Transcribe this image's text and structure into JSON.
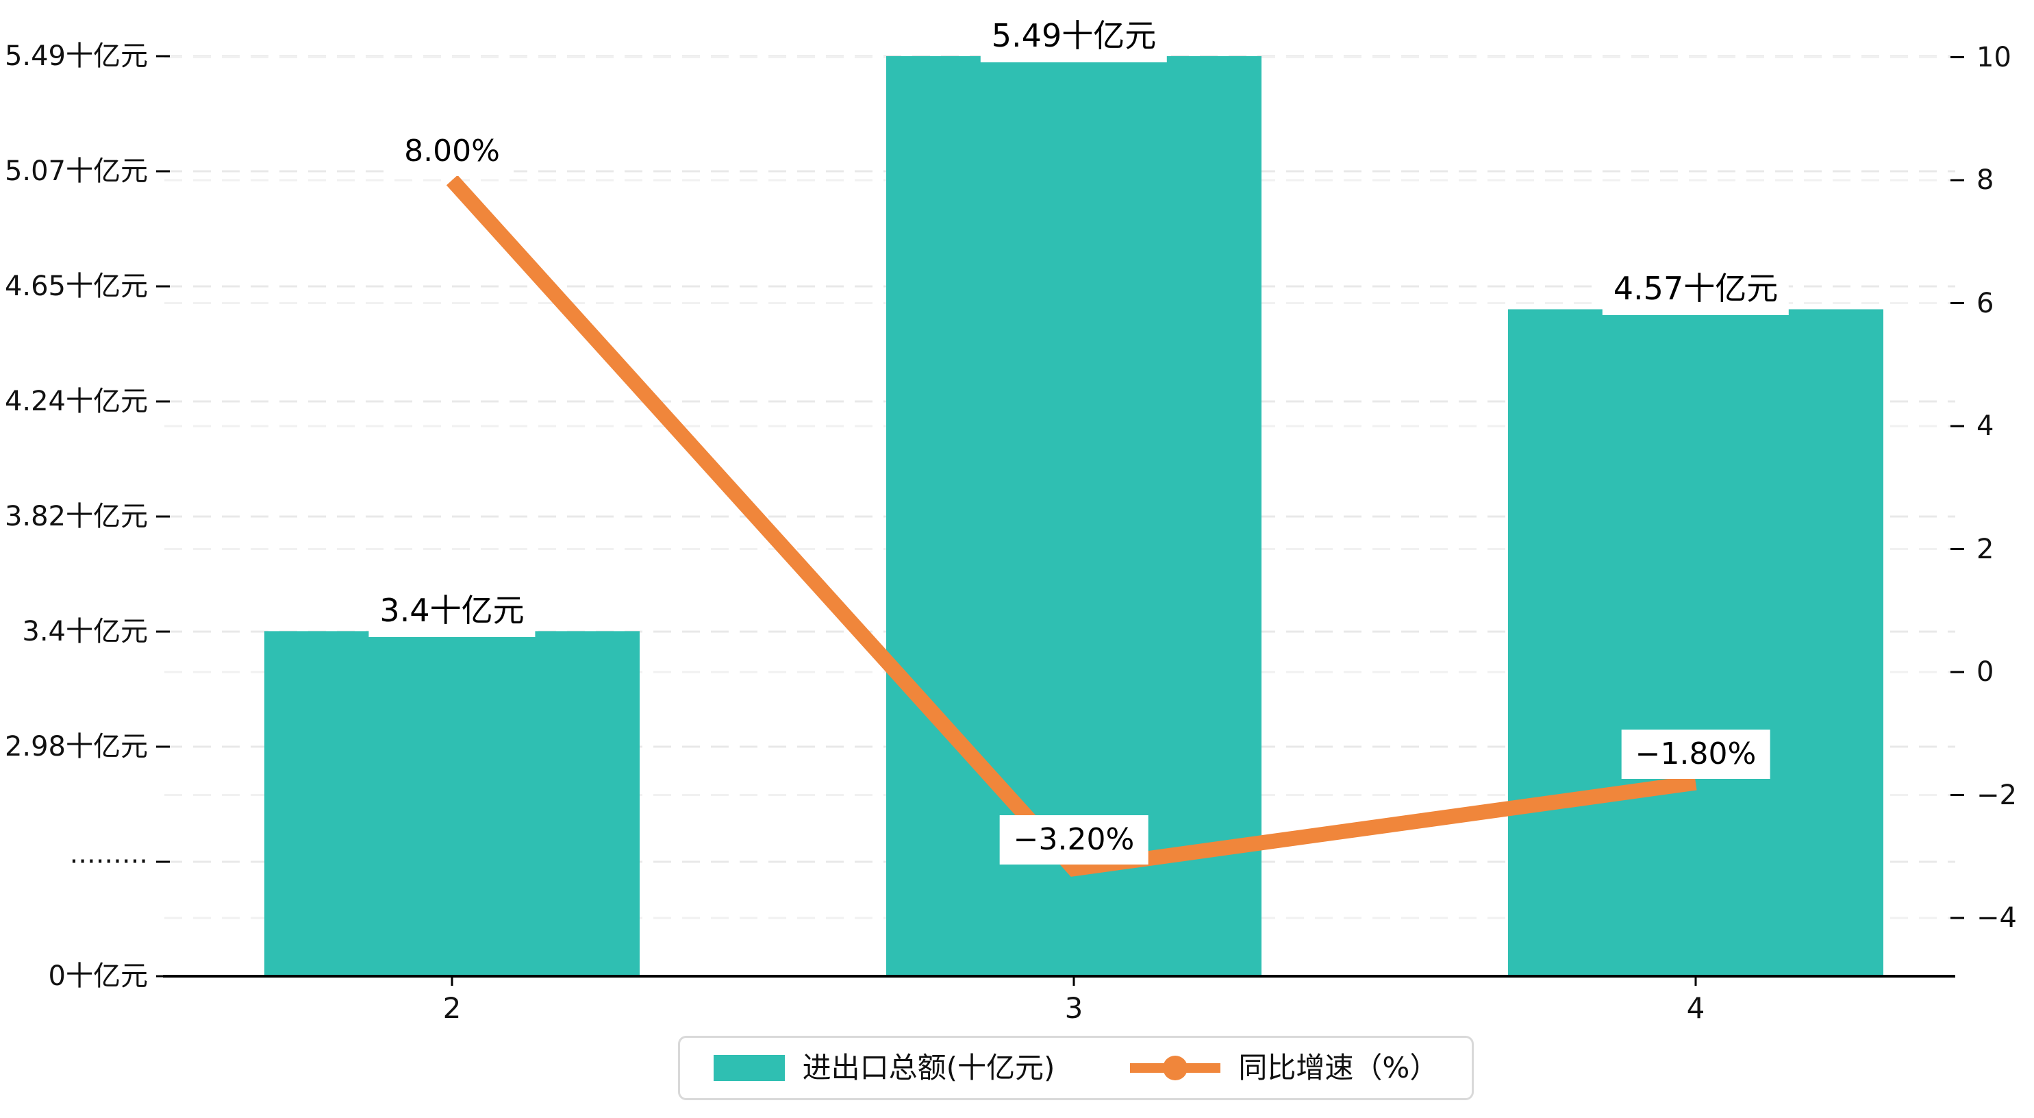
{
  "chart_data": {
    "type": "bar",
    "subtype": "bar+line-dual-axis",
    "categories": [
      "2",
      "3",
      "4"
    ],
    "series": [
      {
        "name": "进出口总额(十亿元)",
        "type": "bar",
        "axis": "left",
        "values": [
          3.4,
          5.49,
          4.57
        ],
        "labels": [
          "3.4十亿元",
          "5.49十亿元",
          "4.57十亿元"
        ]
      },
      {
        "name": "同比增速（%）",
        "type": "line",
        "axis": "right",
        "values": [
          8.0,
          -3.2,
          -1.8
        ],
        "labels": [
          "8.00%",
          "−3.20%",
          "−1.80%"
        ]
      }
    ],
    "left_axis": {
      "unit": "十亿元",
      "broken_axis": true,
      "tick_labels_top_to_bottom": [
        "5.49十亿元",
        "5.07十亿元",
        "4.65十亿元",
        "4.24十亿元",
        "3.82十亿元",
        "3.4十亿元",
        "2.98十亿元",
        "·········",
        "0十亿元"
      ]
    },
    "right_axis": {
      "tick_values_top_to_bottom": [
        10,
        8,
        6,
        4,
        2,
        0,
        -2,
        -4
      ],
      "tick_labels_top_to_bottom": [
        "10",
        "8",
        "6",
        "4",
        "2",
        "0",
        "−2",
        "−4"
      ],
      "range": [
        -5,
        10.5
      ]
    },
    "grid": "dashed",
    "legend_position": "bottom-center",
    "title": ""
  },
  "legend": {
    "items": [
      {
        "label": "进出口总额(十亿元)",
        "marker": "bar-swatch"
      },
      {
        "label": "同比增速（%）",
        "marker": "line-with-dot"
      }
    ]
  },
  "colors": {
    "bar": "#2fbfb2",
    "line": "#f0863b",
    "grid_left": "#e8e8e8",
    "grid_right": "#f1f1f1",
    "axis": "#000000",
    "text": "#111111",
    "label_bg": "#ffffff",
    "legend_border": "#d9d9d9",
    "background": "#ffffff"
  }
}
